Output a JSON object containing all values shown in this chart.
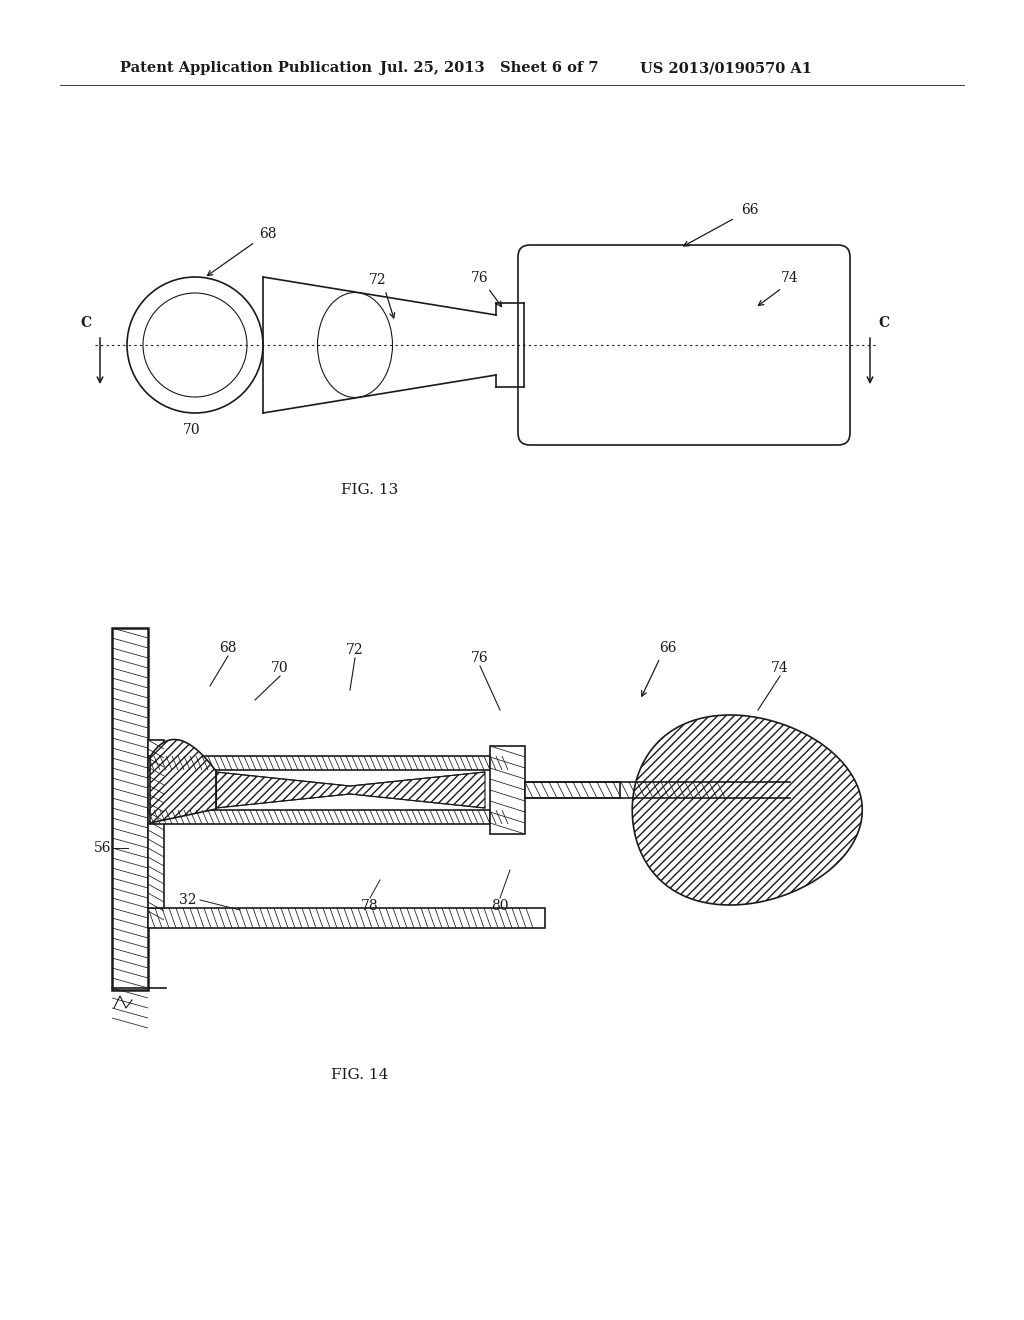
{
  "bg_color": "#ffffff",
  "line_color": "#1a1a1a",
  "header_left": "Patent Application Publication",
  "header_mid": "Jul. 25, 2013   Sheet 6 of 7",
  "header_right": "US 2013/0190570 A1",
  "fig13_label": "FIG. 13",
  "fig14_label": "FIG. 14",
  "label_fontsize": 10,
  "header_fontsize": 10.5
}
